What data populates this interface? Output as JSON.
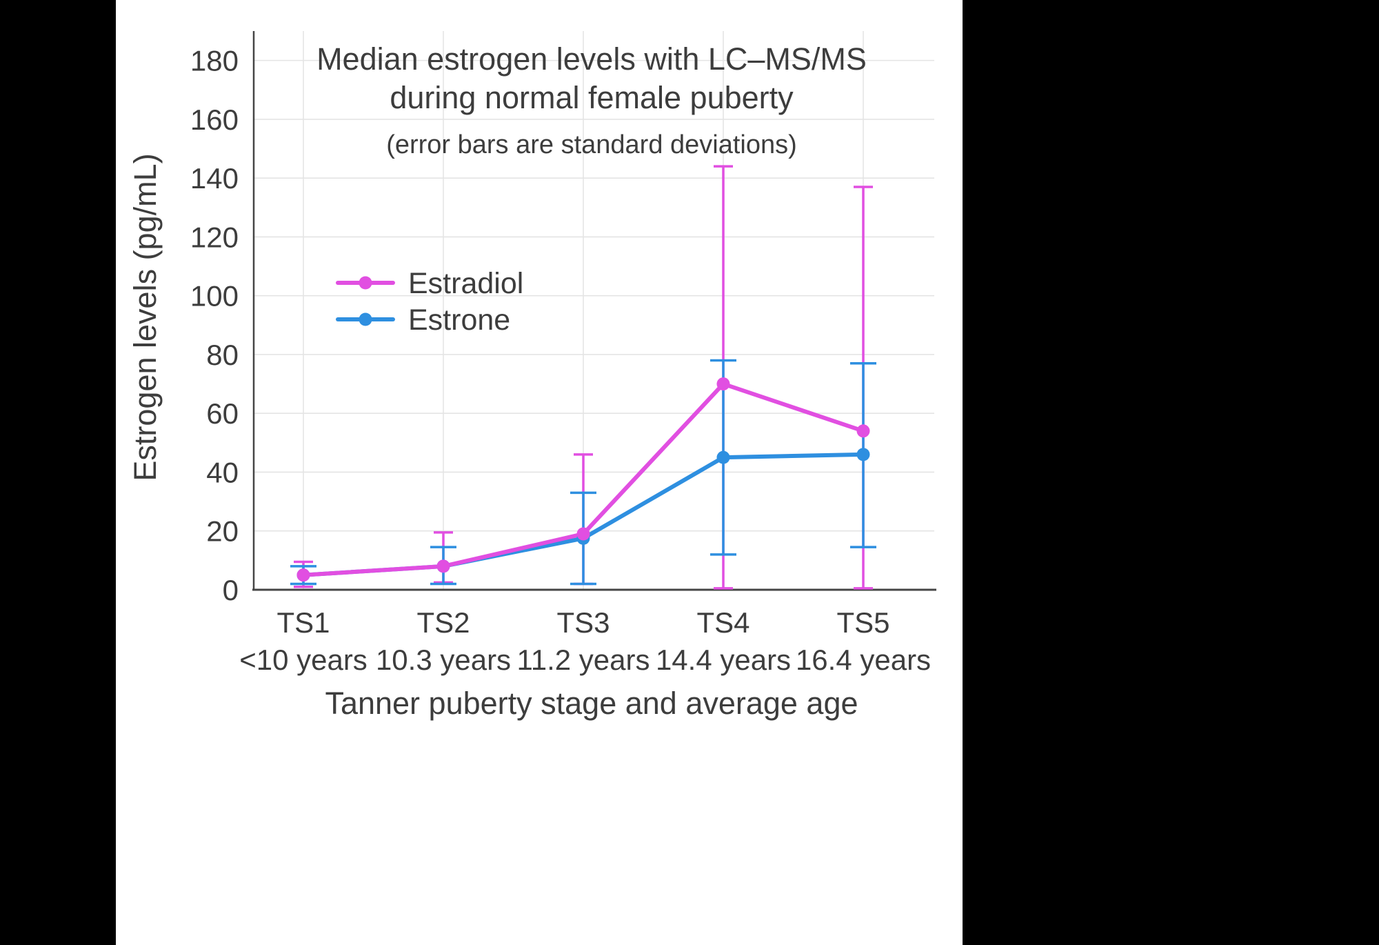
{
  "page": {
    "background": "#000000",
    "canvas_background": "#ffffff"
  },
  "colors": {
    "estradiol": "#e14fe1",
    "estrone": "#2e8fe0",
    "grid": "#e4e4e4",
    "axis": "#454545",
    "text": "#3d3d3d"
  },
  "chart_data": {
    "type": "line",
    "title_line1": "Median estrogen levels with LC–MS/MS",
    "title_line2": "during normal female puberty",
    "subtitle": "(error bars are standard deviations)",
    "xlabel": "Tanner puberty stage and average age",
    "ylabel": "Estrogen levels (pg/mL)",
    "categories": [
      "TS1",
      "TS2",
      "TS3",
      "TS4",
      "TS5"
    ],
    "category_ages": [
      "<10 years",
      "10.3 years",
      "11.2 years",
      "14.4 years",
      "16.4 years"
    ],
    "ylim": [
      0,
      190
    ],
    "yticks": [
      0,
      20,
      40,
      60,
      80,
      100,
      120,
      140,
      160,
      180
    ],
    "grid": true,
    "legend_position": "inside-left",
    "legend_entries": [
      "Estradiol",
      "Estrone"
    ],
    "series": [
      {
        "name": "Estradiol",
        "color": "#e14fe1",
        "values": [
          5,
          8,
          19,
          70,
          54
        ],
        "err_low": [
          1,
          2.5,
          2,
          0.5,
          0.5
        ],
        "err_high": [
          9.5,
          19.5,
          46,
          144,
          137
        ]
      },
      {
        "name": "Estrone",
        "color": "#2e8fe0",
        "values": [
          5,
          8,
          17.5,
          45,
          46
        ],
        "err_low": [
          2,
          2,
          2,
          12,
          14.5
        ],
        "err_high": [
          8,
          14.5,
          33,
          78,
          77
        ]
      }
    ]
  }
}
